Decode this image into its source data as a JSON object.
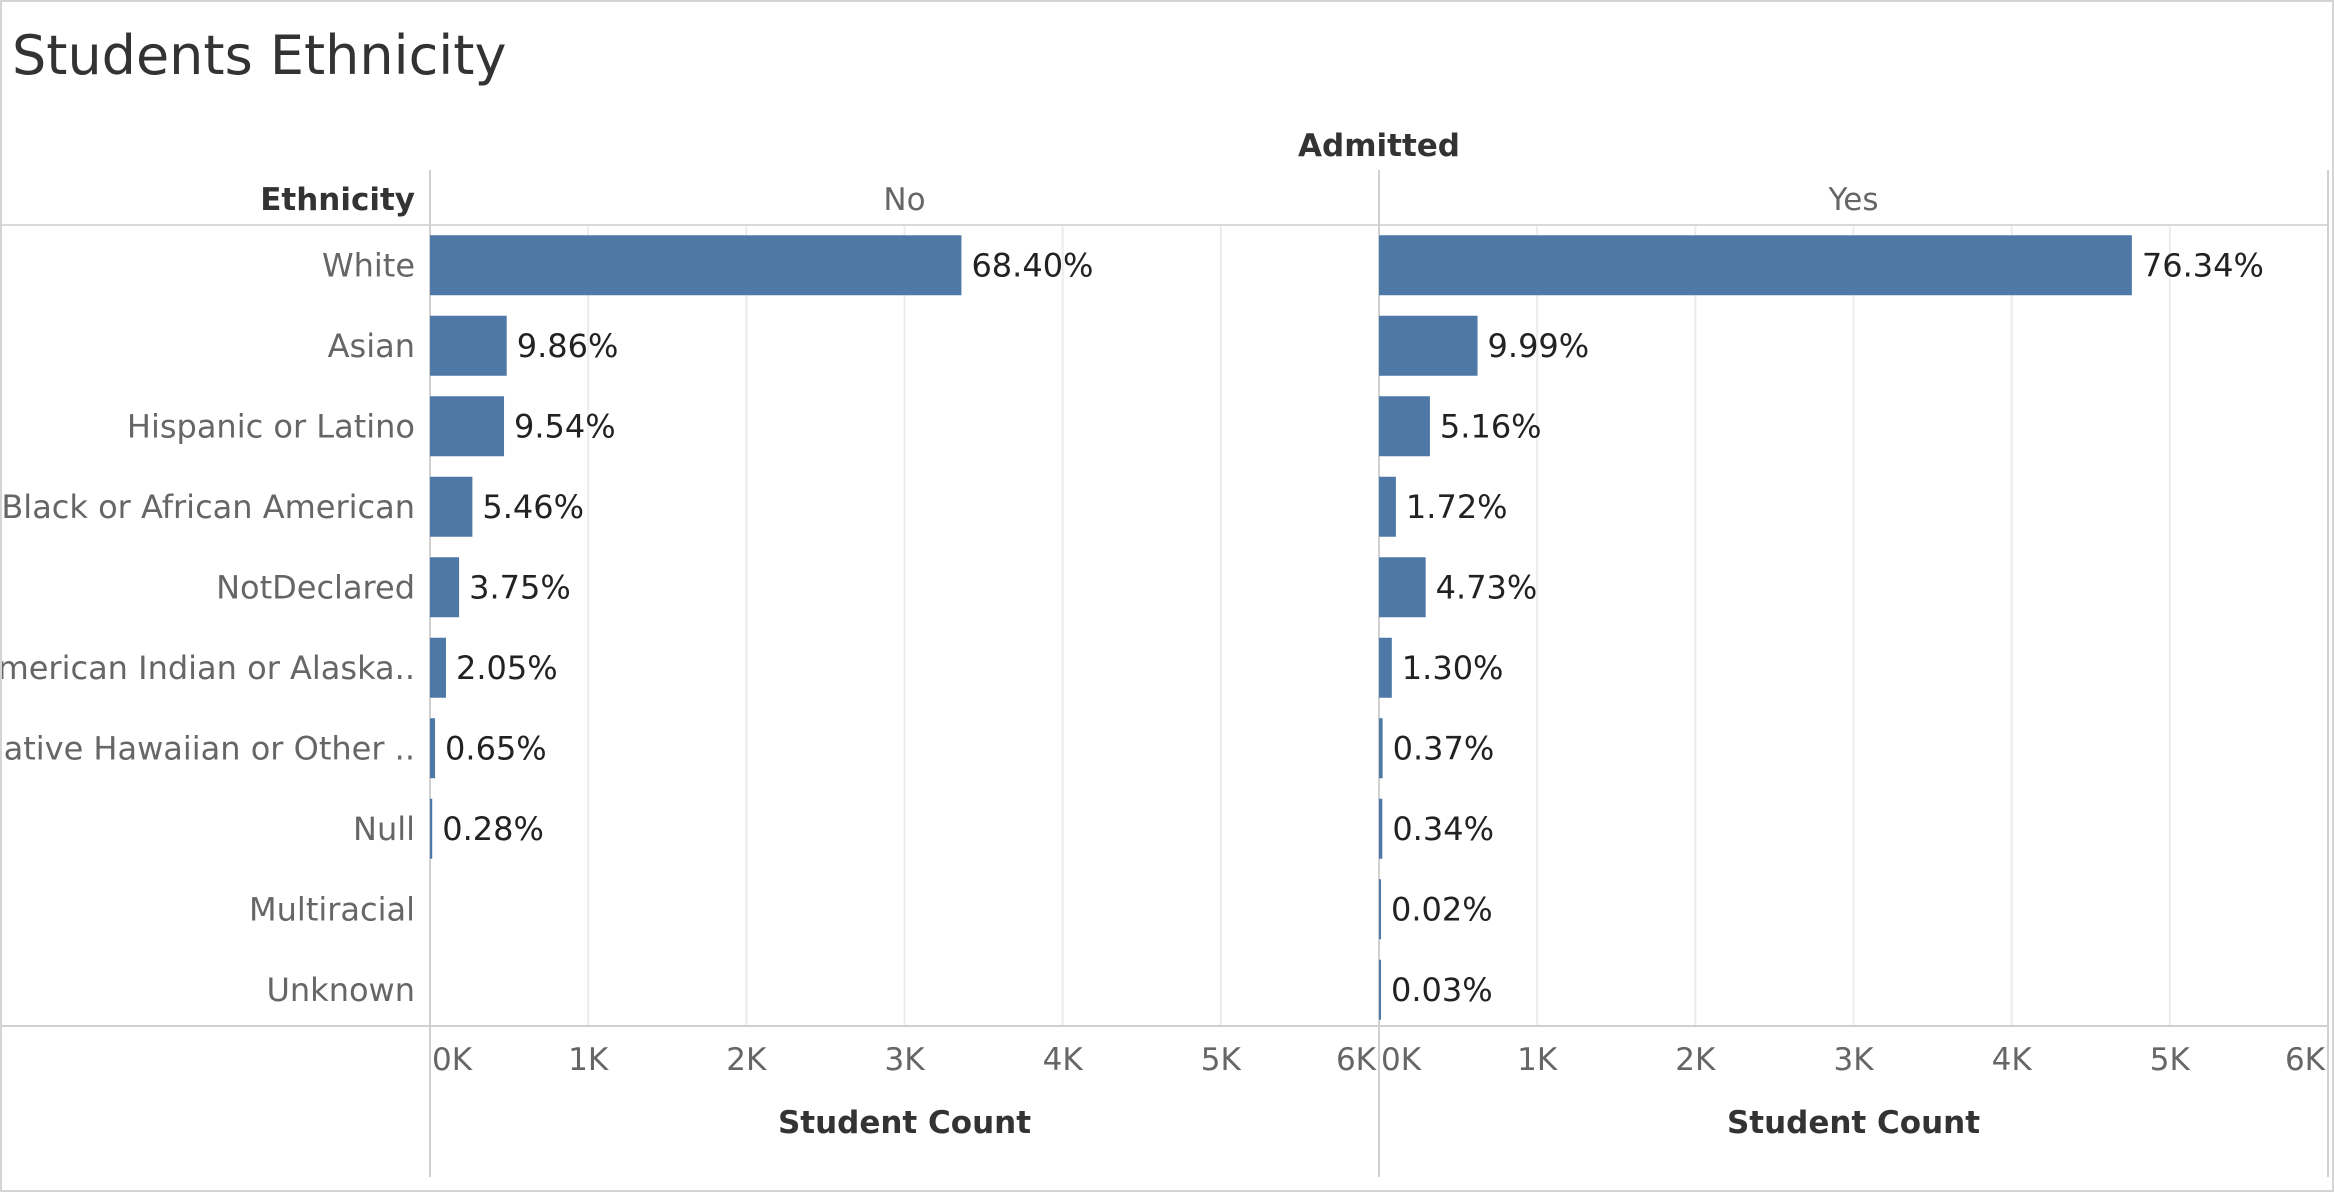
{
  "chart_data": {
    "type": "bar",
    "orientation": "horizontal",
    "title": "Students Ethnicity",
    "row_header": "Ethnicity",
    "column_header": "Admitted",
    "categories": [
      "White",
      "Asian",
      "Hispanic or Latino",
      "Black or African American",
      "NotDeclared",
      "American Indian or Alaska..",
      "Native Hawaiian or Other ..",
      "Null",
      "Multiracial",
      "Unknown"
    ],
    "panels": [
      {
        "name": "No",
        "xlabel": "Student Count",
        "xlim": [
          0,
          6000
        ],
        "ticks": [
          "0K",
          "1K",
          "2K",
          "3K",
          "4K",
          "5K",
          "6K"
        ],
        "values": [
          3360,
          485,
          468,
          268,
          184,
          101,
          32,
          14,
          null,
          null
        ],
        "labels": [
          "68.40%",
          "9.86%",
          "9.54%",
          "5.46%",
          "3.75%",
          "2.05%",
          "0.65%",
          "0.28%",
          "",
          ""
        ]
      },
      {
        "name": "Yes",
        "xlabel": "Student Count",
        "xlim": [
          0,
          6000
        ],
        "ticks": [
          "0K",
          "1K",
          "2K",
          "3K",
          "4K",
          "5K",
          "6K"
        ],
        "values": [
          4760,
          623,
          322,
          107,
          295,
          81,
          23,
          21,
          1,
          2
        ],
        "labels": [
          "76.34%",
          "9.99%",
          "5.16%",
          "1.72%",
          "4.73%",
          "1.30%",
          "0.37%",
          "0.34%",
          "0.02%",
          "0.03%"
        ]
      }
    ],
    "bar_color": "#4e79a7",
    "grid": true
  }
}
